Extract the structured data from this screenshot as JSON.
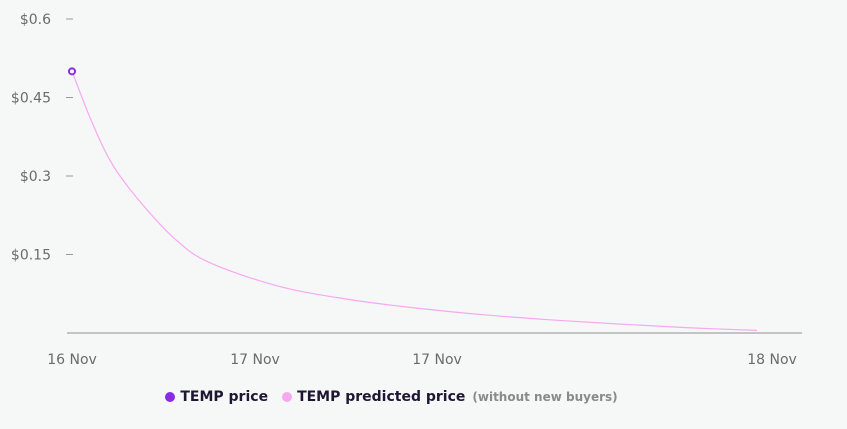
{
  "chart_data": {
    "type": "line",
    "x_tick_labels": [
      "16 Nov",
      "17 Nov",
      "17 Nov",
      "18 Nov"
    ],
    "y_ticks": [
      {
        "value": 0.6,
        "label": "$0.6"
      },
      {
        "value": 0.45,
        "label": "$0.45"
      },
      {
        "value": 0.3,
        "label": "$0.3"
      },
      {
        "value": 0.15,
        "label": "$0.15"
      }
    ],
    "ylim": [
      0,
      0.6
    ],
    "series": [
      {
        "name": "TEMP price",
        "color": "#8a2be2",
        "points": [
          {
            "x": 0,
            "y": 0.5
          }
        ]
      },
      {
        "name": "TEMP predicted price",
        "note": "(without new buyers)",
        "color": "#f7a8f0",
        "points": [
          {
            "x": 0,
            "y": 0.5
          },
          {
            "x": 0.03,
            "y": 0.4
          },
          {
            "x": 0.06,
            "y": 0.32
          },
          {
            "x": 0.1,
            "y": 0.25
          },
          {
            "x": 0.15,
            "y": 0.18
          },
          {
            "x": 0.2,
            "y": 0.135
          },
          {
            "x": 0.3,
            "y": 0.09
          },
          {
            "x": 0.4,
            "y": 0.065
          },
          {
            "x": 0.5,
            "y": 0.048
          },
          {
            "x": 0.6,
            "y": 0.035
          },
          {
            "x": 0.7,
            "y": 0.025
          },
          {
            "x": 0.8,
            "y": 0.017
          },
          {
            "x": 0.9,
            "y": 0.01
          },
          {
            "x": 1.0,
            "y": 0.005
          }
        ]
      }
    ],
    "grid": false
  }
}
